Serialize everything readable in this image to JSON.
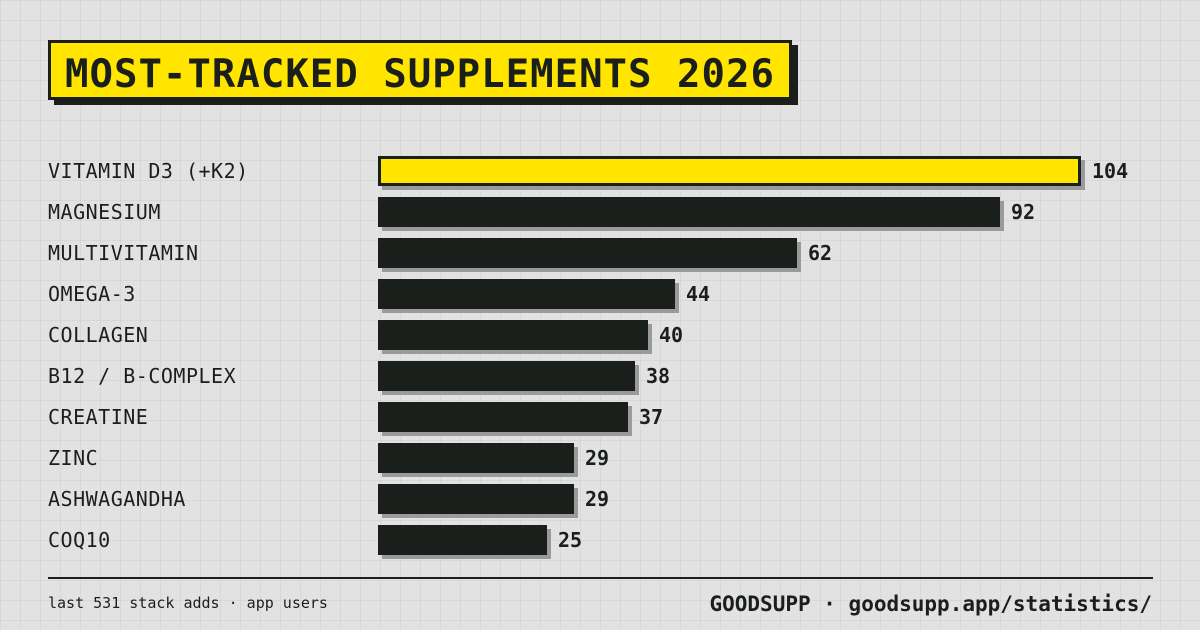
{
  "title": "MOST-TRACKED SUPPLEMENTS 2026",
  "footer": {
    "note": "last 531 stack adds · app users",
    "brand": "GOODSUPP · goodsupp.app/statistics/"
  },
  "colors": {
    "highlight": "#ffe500",
    "bar": "#1b1f1c",
    "shadow": "#9a9a9a",
    "background": "#e2e2e2"
  },
  "chart_data": {
    "type": "bar",
    "orientation": "horizontal",
    "title": "MOST-TRACKED SUPPLEMENTS 2026",
    "categories": [
      "VITAMIN D3 (+K2)",
      "MAGNESIUM",
      "MULTIVITAMIN",
      "OMEGA-3",
      "COLLAGEN",
      "B12 / B-COMPLEX",
      "CREATINE",
      "ZINC",
      "ASHWAGANDHA",
      "COQ10"
    ],
    "values": [
      104,
      92,
      62,
      44,
      40,
      38,
      37,
      29,
      29,
      25
    ],
    "highlighted_index": 0,
    "xlim": [
      0,
      104
    ],
    "grid": false,
    "legend": "none"
  }
}
